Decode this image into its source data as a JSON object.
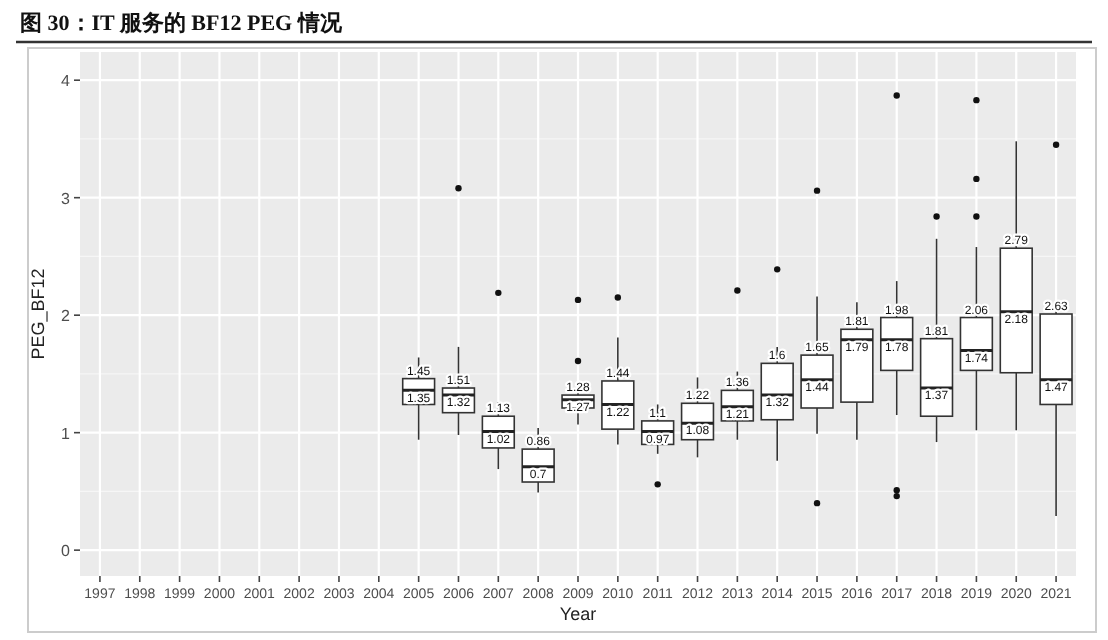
{
  "chart_data": {
    "type": "box",
    "title": "图 30：IT 服务的 BF12 PEG 情况",
    "xlabel": "Year",
    "ylabel": "PEG_BF12",
    "categories": [
      "1997",
      "1998",
      "1999",
      "2000",
      "2001",
      "2002",
      "2003",
      "2004",
      "2005",
      "2006",
      "2007",
      "2008",
      "2009",
      "2010",
      "2011",
      "2012",
      "2013",
      "2014",
      "2015",
      "2016",
      "2017",
      "2018",
      "2019",
      "2020",
      "2021"
    ],
    "boxes": [
      null,
      null,
      null,
      null,
      null,
      null,
      null,
      null,
      {
        "low": 0.94,
        "q1": 1.24,
        "median": 1.36,
        "q3": 1.46,
        "high": 1.64
      },
      {
        "low": 0.98,
        "q1": 1.17,
        "median": 1.32,
        "q3": 1.38,
        "high": 1.73,
        "outliers": [
          3.08
        ]
      },
      {
        "low": 0.69,
        "q1": 0.87,
        "median": 1.01,
        "q3": 1.14,
        "high": 1.26,
        "outliers": [
          2.19
        ]
      },
      {
        "low": 0.49,
        "q1": 0.58,
        "median": 0.71,
        "q3": 0.86,
        "high": 1.04
      },
      {
        "low": 1.07,
        "q1": 1.21,
        "median": 1.28,
        "q3": 1.32,
        "high": 1.4,
        "outliers": [
          1.61,
          2.13
        ]
      },
      {
        "low": 0.9,
        "q1": 1.03,
        "median": 1.24,
        "q3": 1.44,
        "high": 1.81,
        "outliers": [
          2.15
        ]
      },
      {
        "low": 0.82,
        "q1": 0.9,
        "median": 1.01,
        "q3": 1.1,
        "high": 1.24,
        "outliers": [
          0.56
        ]
      },
      {
        "low": 0.79,
        "q1": 0.94,
        "median": 1.08,
        "q3": 1.25,
        "high": 1.47
      },
      {
        "low": 0.94,
        "q1": 1.1,
        "median": 1.22,
        "q3": 1.36,
        "high": 1.52,
        "outliers": [
          2.21
        ]
      },
      {
        "low": 0.76,
        "q1": 1.11,
        "median": 1.32,
        "q3": 1.59,
        "high": 1.73,
        "outliers": [
          2.39
        ]
      },
      {
        "low": 0.99,
        "q1": 1.21,
        "median": 1.45,
        "q3": 1.66,
        "high": 2.16,
        "outliers": [
          3.06,
          0.4
        ]
      },
      {
        "low": 0.94,
        "q1": 1.26,
        "median": 1.79,
        "q3": 1.88,
        "high": 2.11
      },
      {
        "low": 1.15,
        "q1": 1.53,
        "median": 1.79,
        "q3": 1.98,
        "high": 2.29,
        "outliers": [
          3.87,
          0.51,
          0.46
        ]
      },
      {
        "low": 0.92,
        "q1": 1.14,
        "median": 1.38,
        "q3": 1.8,
        "high": 2.65,
        "outliers": [
          2.84
        ]
      },
      {
        "low": 1.02,
        "q1": 1.53,
        "median": 1.7,
        "q3": 1.98,
        "high": 2.58,
        "outliers": [
          3.83,
          3.16,
          2.84
        ]
      },
      {
        "low": 1.02,
        "q1": 1.51,
        "median": 2.03,
        "q3": 2.57,
        "high": 3.48
      },
      {
        "low": 0.29,
        "q1": 1.24,
        "median": 1.45,
        "q3": 2.01,
        "high": 2.11,
        "outliers": [
          3.45
        ]
      }
    ],
    "ylim": [
      -0.22,
      4.24
    ],
    "yticks": [
      0,
      1,
      2,
      3,
      4
    ],
    "grid": true,
    "annotations": [
      {
        "text": "1.45",
        "x": "2005",
        "y": 1.46
      },
      {
        "text": "1.35",
        "x": "2005",
        "y": 1.36
      },
      {
        "text": "1.51",
        "x": "2006",
        "y": 1.38
      },
      {
        "text": "1.32",
        "x": "2006",
        "y": 1.32
      },
      {
        "text": "1.13",
        "x": "2007",
        "y": 1.14
      },
      {
        "text": "1.02",
        "x": "2007",
        "y": 1.01
      },
      {
        "text": "0.86",
        "x": "2008",
        "y": 0.86
      },
      {
        "text": "0.7",
        "x": "2008",
        "y": 0.71
      },
      {
        "text": "1.28",
        "x": "2009",
        "y": 1.32
      },
      {
        "text": "1.27",
        "x": "2009",
        "y": 1.28
      },
      {
        "text": "1.44",
        "x": "2010",
        "y": 1.44
      },
      {
        "text": "1.22",
        "x": "2010",
        "y": 1.24
      },
      {
        "text": "1.1",
        "x": "2011",
        "y": 1.1
      },
      {
        "text": "0.97",
        "x": "2011",
        "y": 1.01
      },
      {
        "text": "1.22",
        "x": "2012",
        "y": 1.25
      },
      {
        "text": "1.08",
        "x": "2012",
        "y": 1.08
      },
      {
        "text": "1.36",
        "x": "2013",
        "y": 1.36
      },
      {
        "text": "1.21",
        "x": "2013",
        "y": 1.22
      },
      {
        "text": "1.6",
        "x": "2014",
        "y": 1.59
      },
      {
        "text": "1.32",
        "x": "2014",
        "y": 1.32
      },
      {
        "text": "1.65",
        "x": "2015",
        "y": 1.66
      },
      {
        "text": "1.44",
        "x": "2015",
        "y": 1.45
      },
      {
        "text": "1.81",
        "x": "2016",
        "y": 1.88
      },
      {
        "text": "1.79",
        "x": "2016",
        "y": 1.79
      },
      {
        "text": "1.98",
        "x": "2017",
        "y": 1.98
      },
      {
        "text": "1.78",
        "x": "2017",
        "y": 1.79
      },
      {
        "text": "1.81",
        "x": "2018",
        "y": 1.8
      },
      {
        "text": "1.37",
        "x": "2018",
        "y": 1.38
      },
      {
        "text": "2.06",
        "x": "2019",
        "y": 1.98
      },
      {
        "text": "1.74",
        "x": "2019",
        "y": 1.7
      },
      {
        "text": "2.79",
        "x": "2020",
        "y": 2.57
      },
      {
        "text": "2.18",
        "x": "2020",
        "y": 2.03
      },
      {
        "text": "2.63",
        "x": "2021",
        "y": 2.01
      },
      {
        "text": "1.47",
        "x": "2021",
        "y": 1.45
      }
    ]
  }
}
